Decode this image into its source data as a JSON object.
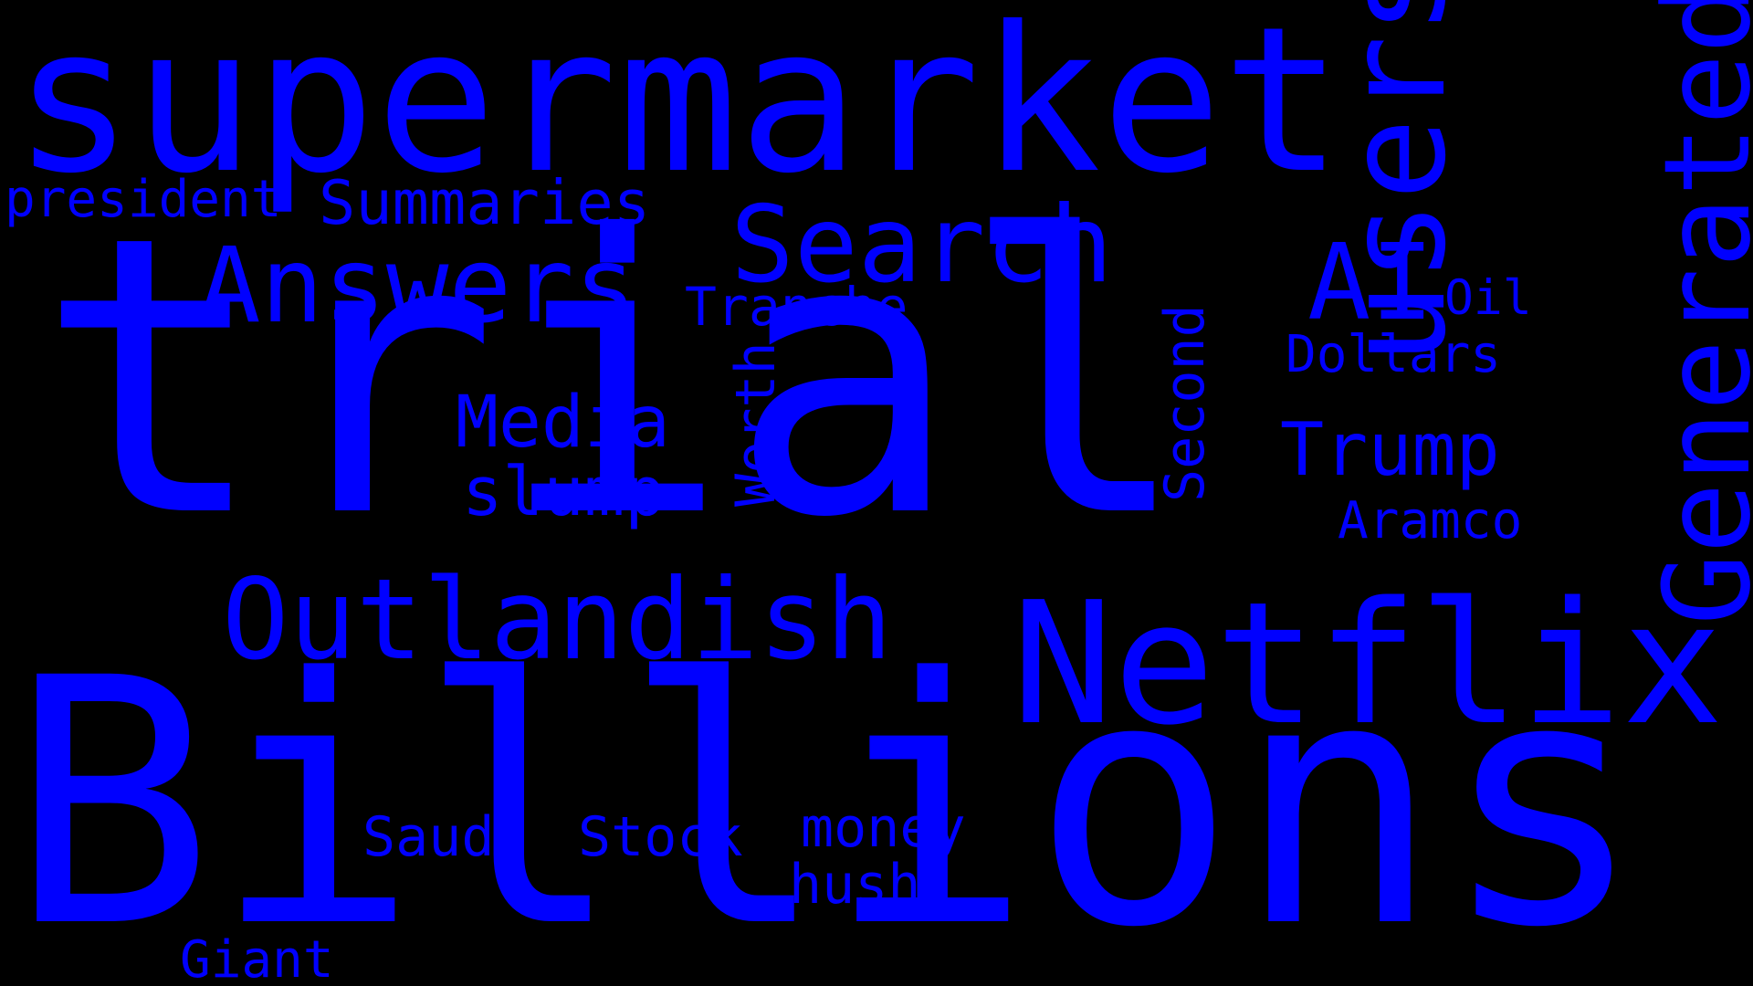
{
  "background_color": "#000000",
  "word_color": "#0000ff",
  "words": {
    "supermarket": "supermarket",
    "trial": "trial",
    "users": "users",
    "generated": "Generated",
    "billions": "Billions",
    "netflix": "Netflix",
    "outlandish": "Outlandish",
    "answers": "Answers",
    "search": "Search",
    "summaries": "Summaries",
    "president": "president",
    "ai": "AI",
    "oil": "Oil",
    "tranche": "Tranche",
    "dollars": "Dollars",
    "media": "Media",
    "slump": "slump",
    "worth": "Worth",
    "second": "Second",
    "trump": "Trump",
    "aramco": "Aramco",
    "saudi": "Saudi",
    "stock": "Stock",
    "money": "money",
    "hush": "hush",
    "giant": "Giant"
  }
}
